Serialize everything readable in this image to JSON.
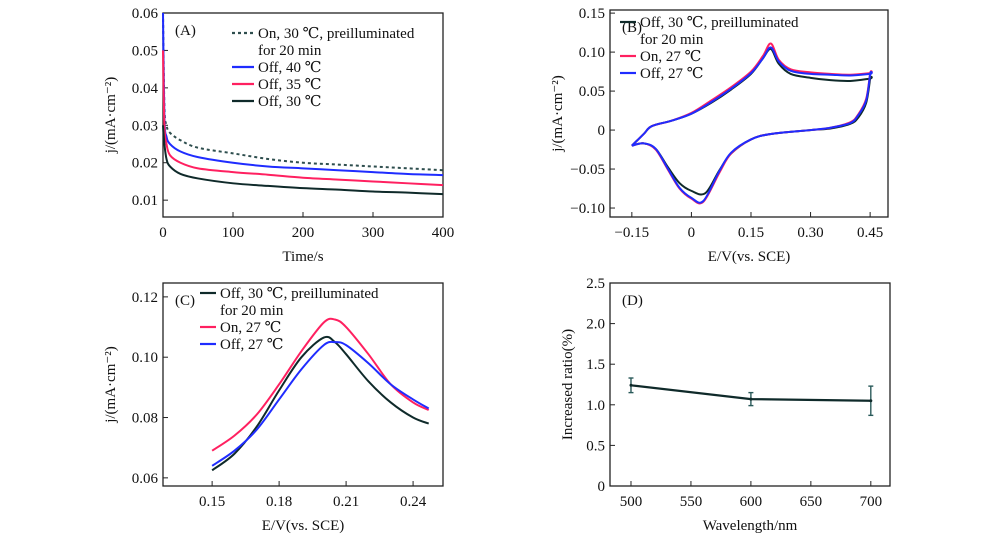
{
  "colors": {
    "blue": "#1f2cff",
    "red": "#ff2060",
    "black": "#0f2a2a",
    "dotted": "#2e4e4e"
  },
  "chart_data": [
    {
      "panel": "(A)",
      "type": "line",
      "xlabel": "Time/s",
      "ylabel": "j/(mA·cm⁻²)",
      "xlim": [
        0,
        400
      ],
      "ylim": [
        0.0055,
        0.06
      ],
      "xticks": [
        0,
        100,
        200,
        300,
        400
      ],
      "xtick_labels": [
        "0",
        "100",
        "200",
        "300",
        "400"
      ],
      "yticks": [
        0.01,
        0.02,
        0.03,
        0.04,
        0.05,
        0.06
      ],
      "ytick_labels": [
        "0.01",
        "0.02",
        "0.03",
        "0.04",
        "0.05",
        "0.06"
      ],
      "legend_position": "top-right",
      "series": [
        {
          "name": "On, 30 ℃, preilluminated",
          "name2": "for 20 min",
          "color": "dotted",
          "dash": true,
          "x": [
            0,
            2,
            5,
            10,
            25,
            50,
            100,
            150,
            200,
            250,
            300,
            350,
            400
          ],
          "y": [
            0.06,
            0.035,
            0.03,
            0.028,
            0.026,
            0.024,
            0.0225,
            0.021,
            0.02,
            0.0195,
            0.019,
            0.0185,
            0.018
          ]
        },
        {
          "name": "Off, 40 ℃",
          "color": "blue",
          "x": [
            0,
            2,
            5,
            10,
            25,
            50,
            100,
            150,
            200,
            250,
            300,
            350,
            400
          ],
          "y": [
            0.06,
            0.032,
            0.027,
            0.025,
            0.023,
            0.0215,
            0.02,
            0.019,
            0.0185,
            0.018,
            0.0175,
            0.017,
            0.0167
          ]
        },
        {
          "name": "Off, 35 ℃",
          "color": "red",
          "x": [
            0,
            2,
            5,
            10,
            25,
            50,
            100,
            150,
            200,
            250,
            300,
            350,
            400
          ],
          "y": [
            0.05,
            0.03,
            0.025,
            0.022,
            0.02,
            0.0185,
            0.0175,
            0.0168,
            0.016,
            0.0155,
            0.015,
            0.0145,
            0.014
          ]
        },
        {
          "name": "Off, 30 ℃",
          "color": "black",
          "x": [
            0,
            2,
            5,
            10,
            25,
            50,
            100,
            150,
            200,
            250,
            300,
            350,
            400
          ],
          "y": [
            0.03,
            0.025,
            0.021,
            0.019,
            0.017,
            0.0158,
            0.0145,
            0.0138,
            0.0132,
            0.0128,
            0.0123,
            0.012,
            0.0116
          ]
        }
      ]
    },
    {
      "panel": "(B)",
      "type": "line",
      "xlabel": "E/V(vs. SCE)",
      "ylabel": "j/(mA·cm⁻²)",
      "xlim": [
        -0.205,
        0.495
      ],
      "ylim": [
        -0.1115,
        0.154
      ],
      "xticks": [
        -0.15,
        0,
        0.15,
        0.3,
        0.45
      ],
      "xtick_labels": [
        "−0.15",
        "0",
        "0.15",
        "0.30",
        "0.45"
      ],
      "yticks": [
        -0.1,
        -0.05,
        0,
        0.05,
        0.1,
        0.15
      ],
      "ytick_labels": [
        "−0.10",
        "−0.05",
        "0",
        "0.05",
        "0.10",
        "0.15"
      ],
      "legend_position": "top-left",
      "series": [
        {
          "name": "Off, 30 ℃, preilluminated",
          "name2": "for 20 min",
          "color": "black",
          "x": [
            -0.15,
            -0.12,
            -0.1,
            -0.05,
            0,
            0.05,
            0.1,
            0.15,
            0.18,
            0.2,
            0.22,
            0.25,
            0.3,
            0.35,
            0.4,
            0.45,
            0.45,
            0.44,
            0.42,
            0.4,
            0.35,
            0.3,
            0.2,
            0.15,
            0.1,
            0.07,
            0.035,
            0,
            -0.03,
            -0.06,
            -0.09,
            -0.12,
            -0.15
          ],
          "y": [
            -0.02,
            -0.005,
            0.005,
            0.012,
            0.021,
            0.035,
            0.052,
            0.072,
            0.092,
            0.104,
            0.085,
            0.072,
            0.067,
            0.064,
            0.063,
            0.066,
            0.066,
            0.035,
            0.016,
            0.008,
            0.002,
            0,
            -0.005,
            -0.012,
            -0.03,
            -0.052,
            -0.081,
            -0.078,
            -0.068,
            -0.047,
            -0.024,
            -0.017,
            -0.02
          ]
        },
        {
          "name": "On, 27 ℃",
          "color": "red",
          "x": [
            -0.15,
            -0.12,
            -0.1,
            -0.05,
            0,
            0.05,
            0.1,
            0.15,
            0.18,
            0.2,
            0.22,
            0.25,
            0.3,
            0.35,
            0.4,
            0.45,
            0.45,
            0.44,
            0.42,
            0.4,
            0.35,
            0.3,
            0.2,
            0.15,
            0.1,
            0.07,
            0.03,
            0,
            -0.03,
            -0.06,
            -0.09,
            -0.12,
            -0.15
          ],
          "y": [
            -0.02,
            -0.005,
            0.005,
            0.012,
            0.022,
            0.038,
            0.055,
            0.075,
            0.095,
            0.111,
            0.09,
            0.078,
            0.074,
            0.072,
            0.071,
            0.073,
            0.073,
            0.04,
            0.02,
            0.01,
            0.003,
            0,
            -0.005,
            -0.012,
            -0.03,
            -0.055,
            -0.092,
            -0.088,
            -0.075,
            -0.05,
            -0.025,
            -0.017,
            -0.02
          ]
        },
        {
          "name": "Off, 27 ℃",
          "color": "blue",
          "x": [
            -0.15,
            -0.12,
            -0.1,
            -0.05,
            0,
            0.05,
            0.1,
            0.15,
            0.18,
            0.2,
            0.22,
            0.25,
            0.3,
            0.35,
            0.4,
            0.45,
            0.45,
            0.44,
            0.42,
            0.4,
            0.35,
            0.3,
            0.2,
            0.15,
            0.1,
            0.07,
            0.03,
            0,
            -0.03,
            -0.06,
            -0.09,
            -0.12,
            -0.15
          ],
          "y": [
            -0.02,
            -0.005,
            0.005,
            0.012,
            0.021,
            0.036,
            0.053,
            0.073,
            0.092,
            0.106,
            0.088,
            0.076,
            0.072,
            0.071,
            0.07,
            0.072,
            0.072,
            0.038,
            0.019,
            0.009,
            0.003,
            0,
            -0.005,
            -0.012,
            -0.029,
            -0.053,
            -0.091,
            -0.087,
            -0.074,
            -0.049,
            -0.024,
            -0.017,
            -0.02
          ]
        }
      ]
    },
    {
      "panel": "(C)",
      "type": "line",
      "xlabel": "E/V(vs. SCE)",
      "ylabel": "j/(mA·cm⁻²)",
      "xlim": [
        0.128,
        0.2534
      ],
      "ylim": [
        0.0573,
        0.1246
      ],
      "xticks": [
        0.15,
        0.18,
        0.21,
        0.24
      ],
      "xtick_labels": [
        "0.15",
        "0.18",
        "0.21",
        "0.24"
      ],
      "yticks": [
        0.06,
        0.08,
        0.1,
        0.12
      ],
      "ytick_labels": [
        "0.06",
        "0.08",
        "0.10",
        "0.12"
      ],
      "legend_position": "top-left",
      "series": [
        {
          "name": "Off, 30 ℃, preilluminated",
          "name2": "for 20 min",
          "color": "black",
          "x": [
            0.15,
            0.16,
            0.17,
            0.18,
            0.19,
            0.2,
            0.205,
            0.21,
            0.22,
            0.23,
            0.24,
            0.247
          ],
          "y": [
            0.0625,
            0.068,
            0.077,
            0.089,
            0.1,
            0.1065,
            0.105,
            0.101,
            0.092,
            0.085,
            0.08,
            0.078
          ]
        },
        {
          "name": "On, 27 ℃",
          "color": "red",
          "x": [
            0.15,
            0.16,
            0.17,
            0.18,
            0.19,
            0.2,
            0.205,
            0.21,
            0.22,
            0.23,
            0.24,
            0.247
          ],
          "y": [
            0.069,
            0.074,
            0.081,
            0.091,
            0.102,
            0.1115,
            0.1125,
            0.11,
            0.101,
            0.091,
            0.085,
            0.0825
          ]
        },
        {
          "name": "Off, 27 ℃",
          "color": "blue",
          "x": [
            0.15,
            0.16,
            0.17,
            0.18,
            0.19,
            0.2,
            0.205,
            0.21,
            0.22,
            0.23,
            0.24,
            0.247
          ],
          "y": [
            0.064,
            0.069,
            0.076,
            0.086,
            0.096,
            0.104,
            0.105,
            0.104,
            0.098,
            0.091,
            0.086,
            0.083
          ]
        }
      ]
    },
    {
      "panel": "(D)",
      "type": "line",
      "xlabel": "Wavelength/nm",
      "ylabel": "Increased ratio(%)",
      "xlim": [
        482.5,
        716
      ],
      "ylim": [
        0,
        2.5
      ],
      "xticks": [
        500,
        550,
        600,
        650,
        700
      ],
      "xtick_labels": [
        "500",
        "550",
        "600",
        "650",
        "700"
      ],
      "yticks": [
        0,
        0.5,
        1.0,
        1.5,
        2.0,
        2.5
      ],
      "ytick_labels": [
        "0",
        "0.5",
        "1.0",
        "1.5",
        "2.0",
        "2.5"
      ],
      "series": [
        {
          "name": "",
          "color": "black",
          "x": [
            500,
            600,
            700
          ],
          "y": [
            1.24,
            1.07,
            1.05
          ],
          "err": [
            0.09,
            0.08,
            0.18
          ]
        }
      ]
    }
  ]
}
